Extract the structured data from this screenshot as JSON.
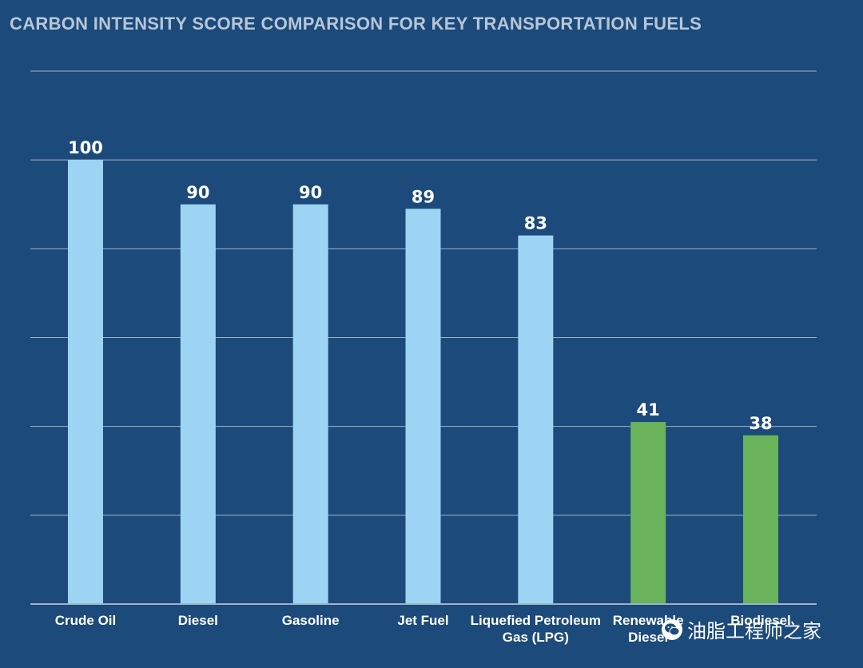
{
  "title": "CARBON INTENSITY SCORE COMPARISON FOR KEY TRANSPORTATION FUELS",
  "colors": {
    "background": "#1c4a7a",
    "conventional": "#9dd3f3",
    "renewable": "#6ab35a",
    "gridline": "#9fb3c6"
  },
  "chart_data": {
    "type": "bar",
    "title": "CARBON INTENSITY SCORE COMPARISON FOR KEY TRANSPORTATION FUELS",
    "categories": [
      [
        "Crude Oil"
      ],
      [
        "Diesel"
      ],
      [
        "Gasoline"
      ],
      [
        "Jet Fuel"
      ],
      [
        "Liquefied Petroleum",
        "Gas (LPG)"
      ],
      [
        "Renewable",
        "Diesel"
      ],
      [
        "Biodiesel"
      ]
    ],
    "values": [
      100,
      90,
      90,
      89,
      83,
      41,
      38
    ],
    "value_labels": [
      "100",
      "90",
      "90",
      "89",
      "83",
      "41",
      "38"
    ],
    "bar_colors": [
      "#9dd3f3",
      "#9dd3f3",
      "#9dd3f3",
      "#9dd3f3",
      "#9dd3f3",
      "#6ab35a",
      "#6ab35a"
    ],
    "ylim": [
      0,
      120
    ],
    "gridlines": [
      20,
      40,
      60,
      80,
      100,
      120
    ],
    "grid": true,
    "xlabel": "",
    "ylabel": ""
  },
  "watermark": {
    "icon": "wechat-icon",
    "text": "油脂工程师之家"
  }
}
